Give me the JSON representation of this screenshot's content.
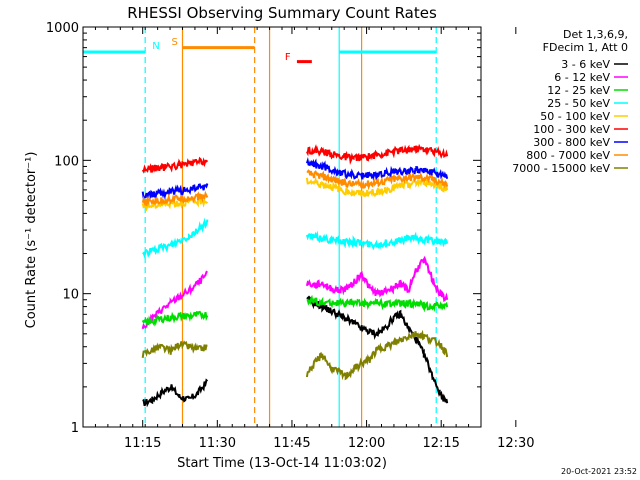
{
  "chart_data": {
    "type": "line",
    "title": "RHESSI Observing Summary Count Rates",
    "xlabel": "Start Time (13-Oct-14 11:03:02)",
    "ylabel": "Count Rate (s⁻¹ detector⁻¹)",
    "x_range_minutes": [
      0,
      80
    ],
    "x_ticks": [
      {
        "label": "11:15",
        "minute": 12
      },
      {
        "label": "11:30",
        "minute": 27
      },
      {
        "label": "11:45",
        "minute": 42
      },
      {
        "label": "12:00",
        "minute": 57
      },
      {
        "label": "12:15",
        "minute": 72
      },
      {
        "label": "12:30",
        "minute": 87
      }
    ],
    "ylim": [
      1,
      1000
    ],
    "yscale": "log",
    "y_ticks": [
      {
        "label": "1",
        "value": 1
      },
      {
        "label": "10",
        "value": 10
      },
      {
        "label": "100",
        "value": 100
      },
      {
        "label": "1000",
        "value": 1000
      }
    ],
    "legend_header": [
      "Det 1,3,6,9,",
      "FDecim 1, Att 0"
    ],
    "legend_position": "right",
    "series": [
      {
        "name": "3 - 6 keV",
        "color": "#000000",
        "seg1": [
          1.5,
          1.6,
          1.8,
          2.0,
          1.7,
          1.6,
          1.8,
          2.2
        ],
        "seg2": [
          9.0,
          8.5,
          8.0,
          7.5,
          7.0,
          6.5,
          6.0,
          5.5,
          5.2,
          5.0,
          5.5,
          6.5,
          7.0,
          5.5,
          4.5,
          3.5,
          2.5,
          1.8,
          1.5
        ]
      },
      {
        "name": "6 - 12 keV",
        "color": "#ff00ff",
        "seg1": [
          5.5,
          6.5,
          7.5,
          8.5,
          9.5,
          10.5,
          12.0,
          14.0
        ],
        "seg2": [
          12.0,
          11.5,
          12.0,
          11.0,
          10.5,
          11.0,
          12.0,
          14.0,
          11.0,
          10.0,
          10.5,
          11.0,
          12.0,
          10.5,
          15.0,
          18.0,
          13.0,
          10.0,
          9.0
        ]
      },
      {
        "name": "12 - 25 keV",
        "color": "#00dd00",
        "seg1": [
          6.0,
          6.2,
          6.5,
          6.6,
          6.8,
          6.8,
          6.9,
          7.0
        ],
        "seg2": [
          9.0,
          8.8,
          8.5,
          8.6,
          8.5,
          8.4,
          8.6,
          8.5,
          8.4,
          8.6,
          8.3,
          8.5,
          8.4,
          8.5,
          8.3,
          8.2,
          8.0,
          8.2,
          8.0
        ]
      },
      {
        "name": "25 - 50 keV",
        "color": "#00ffff",
        "seg1": [
          20.0,
          21.0,
          22.0,
          23.0,
          25.0,
          27.0,
          30.0,
          35.0
        ],
        "seg2": [
          27.0,
          26.5,
          26.0,
          25.5,
          25.0,
          24.5,
          24.5,
          24.0,
          23.5,
          23.5,
          24.0,
          24.5,
          25.0,
          26.0,
          26.0,
          25.5,
          25.0,
          24.5,
          24.0
        ]
      },
      {
        "name": "50 - 100 keV",
        "color": "#ffcc00",
        "seg1": [
          45.0,
          46.0,
          47.0,
          48.0,
          48.0,
          49.0,
          49.0,
          50.0
        ],
        "seg2": [
          70.0,
          68.0,
          66.0,
          64.0,
          61.0,
          59.0,
          57.0,
          56.0,
          57.0,
          58.0,
          60.0,
          62.0,
          64.0,
          66.0,
          68.0,
          69.0,
          67.0,
          64.0,
          61.0
        ]
      },
      {
        "name": "100 - 300 keV",
        "color": "#ff0000",
        "seg1": [
          85.0,
          87.0,
          88.0,
          90.0,
          92.0,
          94.0,
          97.0,
          100.0
        ],
        "seg2": [
          120.0,
          118.0,
          116.0,
          112.0,
          108.0,
          105.0,
          104.0,
          105.0,
          107.0,
          110.0,
          113.0,
          116.0,
          118.0,
          120.0,
          122.0,
          121.0,
          118.0,
          114.0,
          110.0
        ]
      },
      {
        "name": "300 - 800 keV",
        "color": "#0000ff",
        "seg1": [
          55.0,
          56.0,
          57.0,
          58.0,
          59.0,
          60.0,
          62.0,
          64.0
        ],
        "seg2": [
          95.0,
          93.0,
          90.0,
          86.0,
          82.0,
          79.0,
          77.0,
          76.0,
          77.0,
          78.0,
          80.0,
          82.0,
          83.0,
          84.0,
          85.0,
          84.0,
          81.0,
          78.0,
          75.0
        ]
      },
      {
        "name": "800 - 7000 keV",
        "color": "#ff8c00",
        "seg1": [
          48.0,
          49.0,
          50.0,
          51.0,
          52.0,
          52.0,
          53.0,
          54.0
        ],
        "seg2": [
          80.0,
          78.0,
          76.0,
          73.0,
          70.0,
          67.0,
          66.0,
          66.0,
          67.0,
          68.0,
          70.0,
          72.0,
          73.0,
          74.0,
          75.0,
          74.0,
          72.0,
          69.0,
          66.0
        ]
      },
      {
        "name": "7000 - 15000 keV",
        "color": "#808000",
        "seg1": [
          3.5,
          3.8,
          4.0,
          3.7,
          4.2,
          4.0,
          3.8,
          4.0
        ],
        "seg2": [
          2.5,
          3.0,
          3.5,
          2.8,
          2.6,
          2.4,
          2.7,
          3.0,
          3.2,
          3.8,
          4.0,
          4.2,
          4.5,
          4.8,
          5.0,
          4.8,
          4.5,
          4.2,
          3.5
        ]
      }
    ],
    "seg1_minutes": [
      12.0,
      13.9,
      15.7,
      17.6,
      19.4,
      21.3,
      23.1,
      25.0
    ],
    "seg2_minutes": [
      45.0,
      46.6,
      48.1,
      49.7,
      51.3,
      52.8,
      54.4,
      56.0,
      57.6,
      59.1,
      60.7,
      62.3,
      63.8,
      65.4,
      67.0,
      68.5,
      70.1,
      71.7,
      73.2
    ],
    "annotations": [
      {
        "label": "N",
        "color": "#00ffff"
      },
      {
        "label": "S",
        "color": "#ff8c00"
      },
      {
        "label": "F",
        "color": "#ff0000"
      }
    ],
    "cyan_level": 650,
    "orange_level": 700,
    "flare_level": 550,
    "cyan_segments": [
      [
        0.0,
        12.5
      ],
      [
        51.5,
        71.0
      ]
    ],
    "cyan_solid_lines": [
      0.0,
      51.5
    ],
    "cyan_dashed_lines": [
      12.5,
      71.0
    ],
    "orange_segment": [
      20.0,
      34.5
    ],
    "orange_solid_lines": [
      20.0,
      37.5,
      56.0
    ],
    "orange_dashed_lines": [
      34.5
    ],
    "flare_segment": [
      43.0,
      46.0
    ],
    "timestamp": "20-Oct-2021 23:52"
  }
}
